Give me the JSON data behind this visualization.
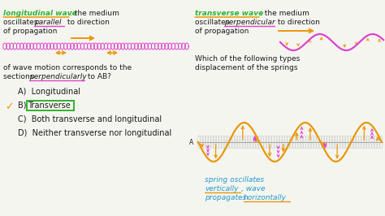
{
  "bg_color": "#f5f5f0",
  "fig_width": 4.74,
  "fig_height": 2.66,
  "dpi": 100,
  "green": "#2db52d",
  "orange": "#e8980a",
  "magenta": "#dd44cc",
  "cyan_blue": "#2299cc",
  "dark_text": "#1a1a1a",
  "checkmark_color": "#e8980a",
  "box_color": "#2db52d",
  "long_wave_label": "longitudinal wave",
  "long_wave_rest": ": the medium",
  "long_osc": "oscillates  ",
  "long_parallel": "parallel",
  "long_dir": " to direction",
  "long_prop": "of propagation",
  "trans_wave_label": "transverse wave",
  "trans_wave_rest": ": the medium",
  "trans_osc": "oscillates ",
  "trans_perp": "perpendicular",
  "trans_dir": " to direction",
  "trans_prop": "of propagation",
  "which_text": "Which of the following types",
  "disp_text": "displacement of the springs",
  "q1": "of wave motion corresponds to the",
  "q2": "sections ",
  "q2b": "perpendicularly",
  "q2c": " to AB?",
  "opt_a": "A)  Longitudinal",
  "opt_b_pre": "B)  ",
  "opt_b_box": "Transverse",
  "opt_c": "C)  Both transverse and longitudinal",
  "opt_d": "D)  Neither transverse nor longitudinal",
  "spring_note1": "spring oscillates",
  "spring_note2a": "vertically",
  "spring_note2b": ", wave",
  "spring_note3a": "propagates ",
  "spring_note3b": "horizontally"
}
